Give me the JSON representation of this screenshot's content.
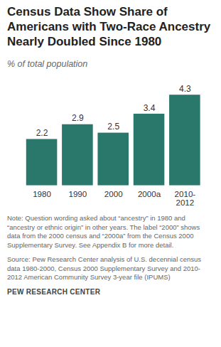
{
  "chart_data": {
    "type": "bar",
    "title": "Census Data Show Share of Americans with Two-Race Ancestry Nearly Doubled Since 1980",
    "subtitle": "% of total population",
    "categories": [
      "1980",
      "1990",
      "2000",
      "2000a",
      "2010-2012"
    ],
    "values": [
      2.2,
      2.9,
      2.5,
      3.4,
      4.3
    ],
    "color": "#29786b",
    "ylim": [
      0,
      4.6
    ],
    "yticks": [],
    "data_labels": true,
    "tick_labels": "x",
    "note": "Note: Question wording asked about “ancestry” in 1980 and “ancestry or ethnic origin” in other years. The label “2000” shows data from the 2000 census and “2000a” from the Census 2000 Supplementary Survey. See Appendix B for more detail.",
    "source": "Source: Pew Research Center analysis of U.S. decennial census data 1980-2000, Census 2000 Supplementary Survey and 2010-2012 American Community Survey 3-year file (IPUMS)",
    "credit": "PEW RESEARCH CENTER"
  }
}
